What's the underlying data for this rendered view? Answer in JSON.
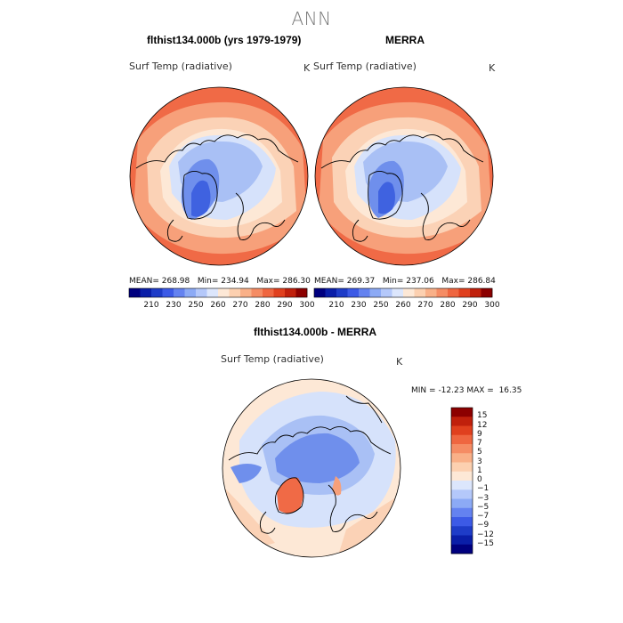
{
  "main_title": "ANN",
  "panels": [
    {
      "title": "flthist134.000b (yrs 1979-1979)",
      "variable": "Surf Temp (radiative)",
      "unit": "K",
      "stats": {
        "mean_label": "MEAN=",
        "mean": "268.98",
        "min_label": "Min=",
        "min": "234.94",
        "max_label": "Max=",
        "max": "286.30"
      }
    },
    {
      "title": "MERRA",
      "variable": "Surf Temp (radiative)",
      "unit": "K",
      "stats": {
        "mean_label": "MEAN=",
        "mean": "269.37",
        "min_label": "Min=",
        "min": "237.06",
        "max_label": "Max=",
        "max": "286.84"
      }
    },
    {
      "title": "flthist134.000b - MERRA",
      "variable": "Surf Temp (radiative)",
      "unit": "K",
      "stats": {
        "min_label": "MIN =",
        "min": "-12.23",
        "max_label": "MAX =",
        "max": "16.35"
      }
    }
  ],
  "abs_colorbar": {
    "labels": [
      "210",
      "230",
      "250",
      "260",
      "270",
      "280",
      "290",
      "300"
    ],
    "colors": [
      "#00007f",
      "#0a1ea8",
      "#1e3cc8",
      "#3c5ae6",
      "#6482f0",
      "#8caaf5",
      "#b4c8fa",
      "#dce6fc",
      "#fde8d6",
      "#fcd0b0",
      "#f9b088",
      "#f58c64",
      "#ef6640",
      "#e0401e",
      "#c0200c",
      "#8c0000"
    ]
  },
  "diff_colorbar": {
    "labels": [
      "15",
      "12",
      "9",
      "7",
      "5",
      "3",
      "1",
      "0",
      "−1",
      "−3",
      "−5",
      "−7",
      "−9",
      "−12",
      "−15"
    ],
    "colors": [
      "#8c0000",
      "#c0200c",
      "#e0401e",
      "#ef6640",
      "#f58c64",
      "#f9b088",
      "#fcd0b0",
      "#fde8d6",
      "#dce6fc",
      "#b4c8fa",
      "#8caaf5",
      "#6482f0",
      "#3c5ae6",
      "#1e3cc8",
      "#0a1ea8",
      "#00007f"
    ]
  },
  "map_colors": {
    "warm_strong": "#f06a46",
    "warm_mid": "#f7a07a",
    "warm_light": "#fbd2b6",
    "neutral": "#fde8d6",
    "cool_light": "#d6e2fb",
    "cool_mid": "#a9c0f5",
    "cool_strong": "#6f8fec",
    "cool_deep": "#3f62e0"
  }
}
